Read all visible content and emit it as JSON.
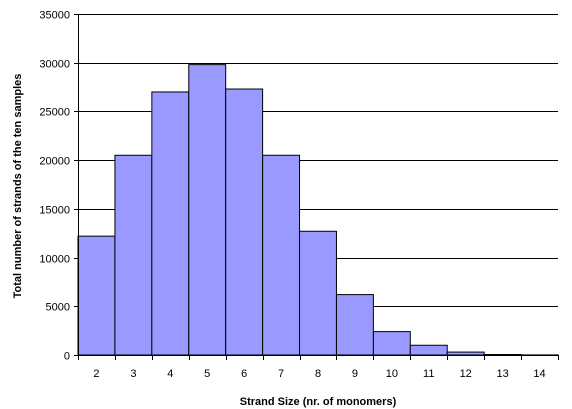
{
  "chart_data": {
    "type": "bar",
    "title": "",
    "xlabel": "Strand Size (nr. of monomers)",
    "ylabel": "Total number of strands of the ten samples",
    "categories": [
      "2",
      "3",
      "4",
      "5",
      "6",
      "7",
      "8",
      "9",
      "10",
      "11",
      "12",
      "13",
      "14"
    ],
    "values": [
      12200,
      20500,
      27000,
      29800,
      27300,
      20500,
      12700,
      6200,
      2400,
      1000,
      300,
      50,
      10
    ],
    "ylim": [
      0,
      35000
    ],
    "yticks": [
      "0",
      "5000",
      "10000",
      "15000",
      "20000",
      "25000",
      "30000",
      "35000"
    ],
    "grid": true,
    "legend": "none",
    "bar_color": "#9999ff",
    "bar_edge_color": "#000000"
  }
}
